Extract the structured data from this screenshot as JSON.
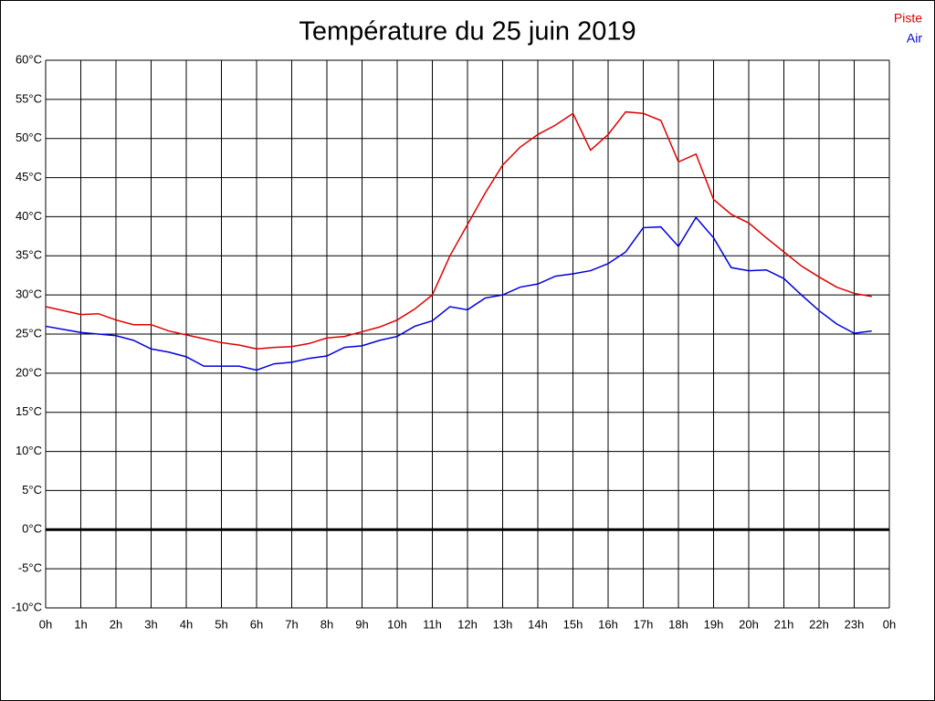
{
  "chart_data": {
    "type": "line",
    "title": "Température du 25 juin 2019",
    "x": [
      0,
      0.5,
      1,
      1.5,
      2,
      2.5,
      3,
      3.5,
      4,
      4.5,
      5,
      5.5,
      6,
      6.5,
      7,
      7.5,
      8,
      8.5,
      9,
      9.5,
      10,
      10.5,
      11,
      11.5,
      12,
      12.5,
      13,
      13.5,
      14,
      14.5,
      15,
      15.5,
      16,
      16.5,
      17,
      17.5,
      18,
      18.5,
      19,
      19.5,
      20,
      20.5,
      21,
      21.5,
      22,
      22.5,
      23,
      23.5
    ],
    "series": [
      {
        "name": "Piste",
        "color": "#e00000",
        "values": [
          28.5,
          28.0,
          27.5,
          27.6,
          26.8,
          26.2,
          26.2,
          25.4,
          24.9,
          24.4,
          23.9,
          23.6,
          23.1,
          23.3,
          23.4,
          23.8,
          24.5,
          24.7,
          25.3,
          25.9,
          26.8,
          28.2,
          30.0,
          35.0,
          39.0,
          43.0,
          46.6,
          48.9,
          50.5,
          51.7,
          53.2,
          48.5,
          50.5,
          53.4,
          53.2,
          52.3,
          47.0,
          48.0,
          42.2,
          40.3,
          39.2,
          37.3,
          35.5,
          33.7,
          32.3,
          31.0,
          30.2,
          29.8
        ]
      },
      {
        "name": "Air",
        "color": "#0000e0",
        "values": [
          26.0,
          25.6,
          25.2,
          25.0,
          24.8,
          24.2,
          23.1,
          22.7,
          22.1,
          20.9,
          20.9,
          20.9,
          20.4,
          21.2,
          21.4,
          21.9,
          22.2,
          23.3,
          23.5,
          24.2,
          24.7,
          26.0,
          26.7,
          28.5,
          28.1,
          29.6,
          30.0,
          31.0,
          31.4,
          32.4,
          32.7,
          33.1,
          34.0,
          35.5,
          38.6,
          38.7,
          36.2,
          39.9,
          37.3,
          33.5,
          33.1,
          33.2,
          32.1,
          30.0,
          28.0,
          26.3,
          25.1,
          25.4
        ]
      }
    ],
    "xlim": [
      0,
      24
    ],
    "xticks": [
      {
        "value": 0,
        "label": "0h"
      },
      {
        "value": 1,
        "label": "1h"
      },
      {
        "value": 2,
        "label": "2h"
      },
      {
        "value": 3,
        "label": "3h"
      },
      {
        "value": 4,
        "label": "4h"
      },
      {
        "value": 5,
        "label": "5h"
      },
      {
        "value": 6,
        "label": "6h"
      },
      {
        "value": 7,
        "label": "7h"
      },
      {
        "value": 8,
        "label": "8h"
      },
      {
        "value": 9,
        "label": "9h"
      },
      {
        "value": 10,
        "label": "10h"
      },
      {
        "value": 11,
        "label": "11h"
      },
      {
        "value": 12,
        "label": "12h"
      },
      {
        "value": 13,
        "label": "13h"
      },
      {
        "value": 14,
        "label": "14h"
      },
      {
        "value": 15,
        "label": "15h"
      },
      {
        "value": 16,
        "label": "16h"
      },
      {
        "value": 17,
        "label": "17h"
      },
      {
        "value": 18,
        "label": "18h"
      },
      {
        "value": 19,
        "label": "19h"
      },
      {
        "value": 20,
        "label": "20h"
      },
      {
        "value": 21,
        "label": "21h"
      },
      {
        "value": 22,
        "label": "22h"
      },
      {
        "value": 23,
        "label": "23h"
      },
      {
        "value": 24,
        "label": "0h"
      }
    ],
    "ylim": [
      -10,
      60
    ],
    "yticks": [
      {
        "value": -10,
        "label": "-10°C"
      },
      {
        "value": -5,
        "label": "-5°C"
      },
      {
        "value": 0,
        "label": "0°C"
      },
      {
        "value": 5,
        "label": "5°C"
      },
      {
        "value": 10,
        "label": "10°C"
      },
      {
        "value": 15,
        "label": "15°C"
      },
      {
        "value": 20,
        "label": "20°C"
      },
      {
        "value": 25,
        "label": "25°C"
      },
      {
        "value": 30,
        "label": "30°C"
      },
      {
        "value": 35,
        "label": "35°C"
      },
      {
        "value": 40,
        "label": "40°C"
      },
      {
        "value": 45,
        "label": "45°C"
      },
      {
        "value": 50,
        "label": "50°C"
      },
      {
        "value": 55,
        "label": "55°C"
      },
      {
        "value": 60,
        "label": "60°C"
      }
    ],
    "grid": true,
    "legend": "top-right"
  }
}
